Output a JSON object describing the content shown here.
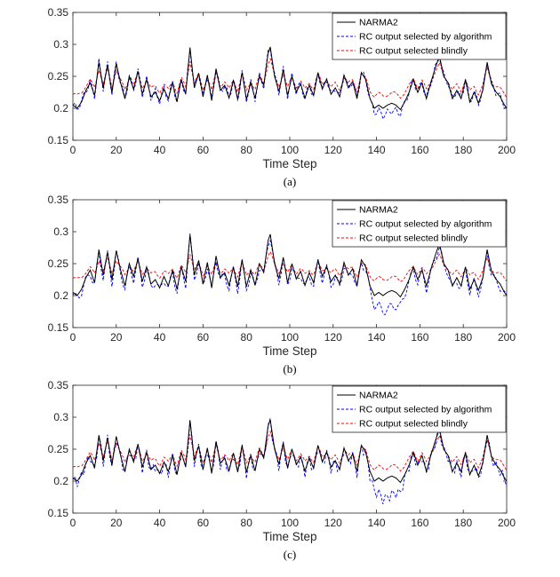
{
  "chart_data": [
    {
      "type": "line",
      "caption": "(a)",
      "xlabel": "Time Step",
      "ylabel": "",
      "xlim": [
        0,
        200
      ],
      "ylim": [
        0.15,
        0.35
      ],
      "xticks": [
        0,
        20,
        40,
        60,
        80,
        100,
        120,
        140,
        160,
        180,
        200
      ],
      "yticks": [
        0.15,
        0.2,
        0.25,
        0.3,
        0.35
      ],
      "ytick_labels": [
        "0.15",
        "0.2",
        "0.25",
        "0.3",
        "0.35"
      ],
      "legend_position": "top-right",
      "series": [
        {
          "name": "NARMA2",
          "style": "solid",
          "color": "#000000",
          "kind": "target"
        },
        {
          "name": "RC output selected by algorithm",
          "style": "dashed",
          "color": "#0000ff",
          "kind": "algo"
        },
        {
          "name": "RC output selected blindly",
          "style": "dashed",
          "color": "#ff0000",
          "kind": "blind"
        }
      ]
    },
    {
      "type": "line",
      "caption": "(b)",
      "xlabel": "Time Step",
      "ylabel": "",
      "xlim": [
        0,
        200
      ],
      "ylim": [
        0.15,
        0.35
      ],
      "xticks": [
        0,
        20,
        40,
        60,
        80,
        100,
        120,
        140,
        160,
        180,
        200
      ],
      "yticks": [
        0.15,
        0.2,
        0.25,
        0.3,
        0.35
      ],
      "ytick_labels": [
        "0.15",
        "0.2",
        "0.25",
        "0.3",
        "0.35"
      ],
      "legend_position": "top-right",
      "series": [
        {
          "name": "NARMA2",
          "style": "solid",
          "color": "#000000",
          "kind": "target"
        },
        {
          "name": "RC output selected by algorithm",
          "style": "dashed",
          "color": "#0000ff",
          "kind": "algo"
        },
        {
          "name": "RC output selected blindly",
          "style": "dashed",
          "color": "#ff0000",
          "kind": "blind"
        }
      ]
    },
    {
      "type": "line",
      "caption": "(c)",
      "xlabel": "Time Step",
      "ylabel": "",
      "xlim": [
        0,
        200
      ],
      "ylim": [
        0.15,
        0.35
      ],
      "xticks": [
        0,
        20,
        40,
        60,
        80,
        100,
        120,
        140,
        160,
        180,
        200
      ],
      "yticks": [
        0.15,
        0.2,
        0.25,
        0.3,
        0.35
      ],
      "ytick_labels": [
        "0.15",
        "0.2",
        "0.25",
        "0.3",
        "0.35"
      ],
      "legend_position": "top-right",
      "series": [
        {
          "name": "NARMA2",
          "style": "solid",
          "color": "#000000",
          "kind": "target"
        },
        {
          "name": "RC output selected by algorithm",
          "style": "dashed",
          "color": "#0000ff",
          "kind": "algo"
        },
        {
          "name": "RC output selected blindly",
          "style": "dashed",
          "color": "#ff0000",
          "kind": "blind"
        }
      ]
    }
  ],
  "narma2_anchors": [
    [
      0,
      0.205
    ],
    [
      2,
      0.2
    ],
    [
      4,
      0.21
    ],
    [
      6,
      0.228
    ],
    [
      8,
      0.24
    ],
    [
      10,
      0.22
    ],
    [
      12,
      0.272
    ],
    [
      14,
      0.232
    ],
    [
      16,
      0.268
    ],
    [
      18,
      0.225
    ],
    [
      20,
      0.27
    ],
    [
      22,
      0.24
    ],
    [
      24,
      0.215
    ],
    [
      26,
      0.25
    ],
    [
      28,
      0.23
    ],
    [
      30,
      0.258
    ],
    [
      32,
      0.222
    ],
    [
      34,
      0.245
    ],
    [
      36,
      0.218
    ],
    [
      38,
      0.225
    ],
    [
      40,
      0.212
    ],
    [
      42,
      0.23
    ],
    [
      44,
      0.215
    ],
    [
      46,
      0.24
    ],
    [
      48,
      0.21
    ],
    [
      50,
      0.245
    ],
    [
      52,
      0.222
    ],
    [
      54,
      0.295
    ],
    [
      56,
      0.232
    ],
    [
      58,
      0.255
    ],
    [
      60,
      0.218
    ],
    [
      62,
      0.252
    ],
    [
      64,
      0.212
    ],
    [
      66,
      0.262
    ],
    [
      68,
      0.228
    ],
    [
      70,
      0.236
    ],
    [
      72,
      0.216
    ],
    [
      74,
      0.244
    ],
    [
      76,
      0.214
    ],
    [
      78,
      0.256
    ],
    [
      80,
      0.214
    ],
    [
      82,
      0.24
    ],
    [
      84,
      0.216
    ],
    [
      86,
      0.25
    ],
    [
      88,
      0.236
    ],
    [
      90,
      0.286
    ],
    [
      91,
      0.296
    ],
    [
      93,
      0.25
    ],
    [
      95,
      0.226
    ],
    [
      97,
      0.26
    ],
    [
      99,
      0.22
    ],
    [
      101,
      0.25
    ],
    [
      103,
      0.226
    ],
    [
      105,
      0.238
    ],
    [
      107,
      0.216
    ],
    [
      109,
      0.236
    ],
    [
      111,
      0.22
    ],
    [
      113,
      0.256
    ],
    [
      115,
      0.23
    ],
    [
      117,
      0.246
    ],
    [
      119,
      0.222
    ],
    [
      121,
      0.232
    ],
    [
      123,
      0.218
    ],
    [
      125,
      0.252
    ],
    [
      127,
      0.232
    ],
    [
      129,
      0.242
    ],
    [
      131,
      0.215
    ],
    [
      133,
      0.256
    ],
    [
      135,
      0.245
    ],
    [
      137,
      0.215
    ],
    [
      139,
      0.2
    ],
    [
      141,
      0.205
    ],
    [
      143,
      0.2
    ],
    [
      145,
      0.205
    ],
    [
      147,
      0.208
    ],
    [
      149,
      0.205
    ],
    [
      151,
      0.198
    ],
    [
      153,
      0.21
    ],
    [
      155,
      0.225
    ],
    [
      157,
      0.245
    ],
    [
      159,
      0.225
    ],
    [
      161,
      0.24
    ],
    [
      163,
      0.215
    ],
    [
      165,
      0.24
    ],
    [
      167,
      0.262
    ],
    [
      169,
      0.282
    ],
    [
      171,
      0.25
    ],
    [
      173,
      0.24
    ],
    [
      175,
      0.215
    ],
    [
      177,
      0.228
    ],
    [
      179,
      0.215
    ],
    [
      181,
      0.245
    ],
    [
      183,
      0.21
    ],
    [
      185,
      0.225
    ],
    [
      187,
      0.208
    ],
    [
      189,
      0.228
    ],
    [
      191,
      0.272
    ],
    [
      193,
      0.238
    ],
    [
      195,
      0.226
    ],
    [
      197,
      0.218
    ],
    [
      199,
      0.205
    ],
    [
      200,
      0.2
    ]
  ]
}
